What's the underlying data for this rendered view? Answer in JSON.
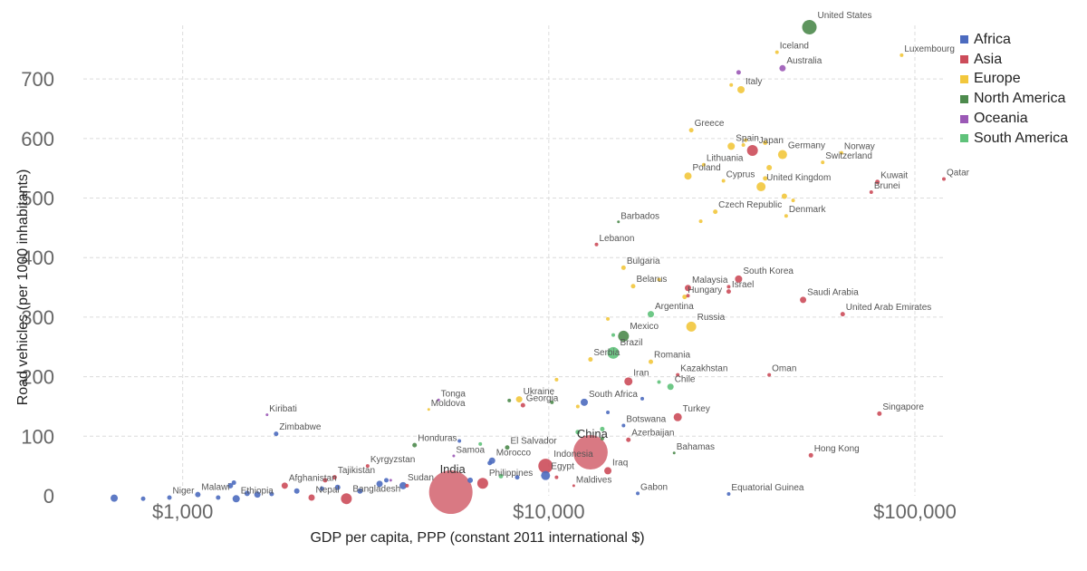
{
  "chart_data": {
    "type": "scatter",
    "title": "",
    "xlabel": "GDP per capita, PPP (constant 2011 international $)",
    "ylabel": "Road vehicles (per 1000 inhabitants)",
    "x_scale": "log",
    "xlim": [
      500,
      120000
    ],
    "ylim": [
      0,
      790
    ],
    "x_ticks": [
      {
        "value": 1000,
        "label": "$1,000"
      },
      {
        "value": 10000,
        "label": "$10,000"
      },
      {
        "value": 100000,
        "label": "$100,000"
      }
    ],
    "y_ticks": [
      {
        "value": 0,
        "label": "0"
      },
      {
        "value": 100,
        "label": "100"
      },
      {
        "value": 200,
        "label": "200"
      },
      {
        "value": 300,
        "label": "300"
      },
      {
        "value": 400,
        "label": "400"
      },
      {
        "value": 500,
        "label": "500"
      },
      {
        "value": 600,
        "label": "600"
      },
      {
        "value": 700,
        "label": "700"
      }
    ],
    "grid": true,
    "legend_position": "right",
    "series": [
      {
        "name": "Africa",
        "color": "#4c6bbf"
      },
      {
        "name": "Asia",
        "color": "#cc4c5a"
      },
      {
        "name": "Europe",
        "color": "#f2c73c"
      },
      {
        "name": "North America",
        "color": "#4d8a4d"
      },
      {
        "name": "Oceania",
        "color": "#9b59b6"
      },
      {
        "name": "South America",
        "color": "#5fc27a"
      }
    ],
    "points": [
      {
        "label": "United States",
        "x": 51500,
        "y": 787,
        "region": "North America",
        "size": 8
      },
      {
        "label": "Iceland",
        "x": 42000,
        "y": 745,
        "region": "Europe",
        "size": 2
      },
      {
        "label": "Luxembourg",
        "x": 92000,
        "y": 740,
        "region": "Europe",
        "size": 2
      },
      {
        "label": "Australia",
        "x": 43500,
        "y": 718,
        "region": "Oceania",
        "size": 3.5
      },
      {
        "label": "Italy",
        "x": 33500,
        "y": 682,
        "region": "Europe",
        "size": 4
      },
      {
        "label": "Greece",
        "x": 24500,
        "y": 614,
        "region": "Europe",
        "size": 2.5
      },
      {
        "label": "Spain",
        "x": 31500,
        "y": 587,
        "region": "Europe",
        "size": 4
      },
      {
        "label": "Japan",
        "x": 36000,
        "y": 580,
        "region": "Asia",
        "size": 6
      },
      {
        "label": "Germany",
        "x": 43500,
        "y": 573,
        "region": "Europe",
        "size": 5
      },
      {
        "label": "Norway",
        "x": 63000,
        "y": 576,
        "region": "Europe",
        "size": 2
      },
      {
        "label": "Switzerland",
        "x": 56000,
        "y": 560,
        "region": "Europe",
        "size": 2
      },
      {
        "label": "Lithuania",
        "x": 26500,
        "y": 556,
        "region": "Europe",
        "size": 2
      },
      {
        "label": "Poland",
        "x": 24000,
        "y": 537,
        "region": "Europe",
        "size": 4
      },
      {
        "label": "Cyprus",
        "x": 30000,
        "y": 529,
        "region": "Europe",
        "size": 2
      },
      {
        "label": "United Kingdom",
        "x": 38000,
        "y": 519,
        "region": "Europe",
        "size": 5
      },
      {
        "label": "Kuwait",
        "x": 79000,
        "y": 527,
        "region": "Asia",
        "size": 2.5
      },
      {
        "label": "Qatar",
        "x": 120000,
        "y": 532,
        "region": "Asia",
        "size": 2
      },
      {
        "label": "Brunei",
        "x": 76000,
        "y": 510,
        "region": "Asia",
        "size": 2
      },
      {
        "label": "Czech Republic",
        "x": 28500,
        "y": 477,
        "region": "Europe",
        "size": 2.5
      },
      {
        "label": "Denmark",
        "x": 44500,
        "y": 470,
        "region": "Europe",
        "size": 2
      },
      {
        "label": "Barbados",
        "x": 15500,
        "y": 460,
        "region": "North America",
        "size": 1.5
      },
      {
        "label": "Lebanon",
        "x": 13500,
        "y": 422,
        "region": "Asia",
        "size": 2
      },
      {
        "label": "Bulgaria",
        "x": 16000,
        "y": 383,
        "region": "Europe",
        "size": 2.5
      },
      {
        "label": "South Korea",
        "x": 33000,
        "y": 364,
        "region": "Asia",
        "size": 4
      },
      {
        "label": "Belarus",
        "x": 17000,
        "y": 352,
        "region": "Europe",
        "size": 2.5
      },
      {
        "label": "Malaysia",
        "x": 24000,
        "y": 349,
        "region": "Asia",
        "size": 3.5
      },
      {
        "label": "Israel",
        "x": 31000,
        "y": 343,
        "region": "Asia",
        "size": 2.5
      },
      {
        "label": "Hungary",
        "x": 23500,
        "y": 334,
        "region": "Europe",
        "size": 2.5
      },
      {
        "label": "Saudi Arabia",
        "x": 49500,
        "y": 329,
        "region": "Asia",
        "size": 3.5
      },
      {
        "label": "United Arab Emirates",
        "x": 63500,
        "y": 305,
        "region": "Asia",
        "size": 2.5
      },
      {
        "label": "Argentina",
        "x": 19000,
        "y": 305,
        "region": "South America",
        "size": 3.5
      },
      {
        "label": "Russia",
        "x": 24500,
        "y": 284,
        "region": "Europe",
        "size": 5.5
      },
      {
        "label": "Mexico",
        "x": 16000,
        "y": 268,
        "region": "North America",
        "size": 6
      },
      {
        "label": "Brazil",
        "x": 15000,
        "y": 240,
        "region": "South America",
        "size": 6.5
      },
      {
        "label": "Serbia",
        "x": 13000,
        "y": 229,
        "region": "Europe",
        "size": 2.5
      },
      {
        "label": "Romania",
        "x": 19000,
        "y": 225,
        "region": "Europe",
        "size": 2.5
      },
      {
        "label": "Kazakhstan",
        "x": 22500,
        "y": 203,
        "region": "Asia",
        "size": 2
      },
      {
        "label": "Oman",
        "x": 40000,
        "y": 203,
        "region": "Asia",
        "size": 2
      },
      {
        "label": "Iran",
        "x": 16500,
        "y": 192,
        "region": "Asia",
        "size": 4.5
      },
      {
        "label": "Chile",
        "x": 21500,
        "y": 183,
        "region": "South America",
        "size": 3.5
      },
      {
        "label": "Ukraine",
        "x": 8300,
        "y": 162,
        "region": "Europe",
        "size": 3.5
      },
      {
        "label": "South Africa",
        "x": 12500,
        "y": 157,
        "region": "Africa",
        "size": 4
      },
      {
        "label": "Tonga",
        "x": 5000,
        "y": 161,
        "region": "Oceania",
        "size": 1.5
      },
      {
        "label": "Georgia",
        "x": 8500,
        "y": 152,
        "region": "Asia",
        "size": 2.5
      },
      {
        "label": "Moldova",
        "x": 4700,
        "y": 145,
        "region": "Europe",
        "size": 1.5
      },
      {
        "label": "Turkey",
        "x": 22500,
        "y": 132,
        "region": "Asia",
        "size": 4.5
      },
      {
        "label": "Singapore",
        "x": 80000,
        "y": 138,
        "region": "Asia",
        "size": 2.5
      },
      {
        "label": "Kiribati",
        "x": 1700,
        "y": 136,
        "region": "Oceania",
        "size": 1.5
      },
      {
        "label": "Botswana",
        "x": 16000,
        "y": 118,
        "region": "Africa",
        "size": 2
      },
      {
        "label": "Zimbabwe",
        "x": 1800,
        "y": 104,
        "region": "Africa",
        "size": 2.5
      },
      {
        "label": "China",
        "x": 13000,
        "y": 73,
        "region": "Asia",
        "size": 19
      },
      {
        "label": "Azerbaijan",
        "x": 16500,
        "y": 94,
        "region": "Asia",
        "size": 2.5
      },
      {
        "label": "Honduras",
        "x": 4300,
        "y": 85,
        "region": "North America",
        "size": 2.5
      },
      {
        "label": "El Salvador",
        "x": 7700,
        "y": 81,
        "region": "North America",
        "size": 2.5
      },
      {
        "label": "Bahamas",
        "x": 22000,
        "y": 72,
        "region": "North America",
        "size": 1.5
      },
      {
        "label": "Hong Kong",
        "x": 52000,
        "y": 68,
        "region": "Asia",
        "size": 2.5
      },
      {
        "label": "Samoa",
        "x": 5500,
        "y": 67,
        "region": "Oceania",
        "size": 1.5
      },
      {
        "label": "Morocco",
        "x": 7000,
        "y": 59,
        "region": "Africa",
        "size": 3.5
      },
      {
        "label": "Indonesia",
        "x": 9800,
        "y": 50,
        "region": "Asia",
        "size": 8
      },
      {
        "label": "Egypt",
        "x": 9800,
        "y": 34,
        "region": "Africa",
        "size": 5
      },
      {
        "label": "Iraq",
        "x": 14500,
        "y": 42,
        "region": "Asia",
        "size": 4
      },
      {
        "label": "Kyrgyzstan",
        "x": 3200,
        "y": 50,
        "region": "Asia",
        "size": 2
      },
      {
        "label": "Philippines",
        "x": 6600,
        "y": 21,
        "region": "Asia",
        "size": 6
      },
      {
        "label": "Tajikistan",
        "x": 2600,
        "y": 31,
        "region": "Asia",
        "size": 2.5
      },
      {
        "label": "Afghanistan",
        "x": 1900,
        "y": 17,
        "region": "Asia",
        "size": 3.5
      },
      {
        "label": "India",
        "x": 5400,
        "y": 6,
        "region": "Asia",
        "size": 24
      },
      {
        "label": "Sudan",
        "x": 4000,
        "y": 17,
        "region": "Africa",
        "size": 4
      },
      {
        "label": "Maldives",
        "x": 11700,
        "y": 17,
        "region": "Asia",
        "size": 1.5
      },
      {
        "label": "Gabon",
        "x": 17500,
        "y": 4,
        "region": "Africa",
        "size": 2
      },
      {
        "label": "Equatorial Guinea",
        "x": 31000,
        "y": 3,
        "region": "Africa",
        "size": 2
      },
      {
        "label": "Bangladesh",
        "x": 2800,
        "y": -5,
        "region": "Asia",
        "size": 6
      },
      {
        "label": "Nepal",
        "x": 2250,
        "y": -3,
        "region": "Asia",
        "size": 3.5
      },
      {
        "label": "Ethiopia",
        "x": 1400,
        "y": -5,
        "region": "Africa",
        "size": 4
      },
      {
        "label": "Malawi",
        "x": 1100,
        "y": 2,
        "region": "Africa",
        "size": 3
      },
      {
        "label": "Niger",
        "x": 920,
        "y": -3,
        "region": "Africa",
        "size": 2.5
      },
      {
        "label": "",
        "x": 650,
        "y": -4,
        "region": "Africa",
        "size": 4
      },
      {
        "label": "",
        "x": 780,
        "y": -5,
        "region": "Africa",
        "size": 2.5
      },
      {
        "label": "",
        "x": 1250,
        "y": -3,
        "region": "Africa",
        "size": 2.5
      },
      {
        "label": "",
        "x": 1350,
        "y": 17,
        "region": "Africa",
        "size": 3
      },
      {
        "label": "",
        "x": 1380,
        "y": 22,
        "region": "Africa",
        "size": 2.5
      },
      {
        "label": "",
        "x": 1500,
        "y": 4,
        "region": "Africa",
        "size": 3
      },
      {
        "label": "",
        "x": 1600,
        "y": 2,
        "region": "Africa",
        "size": 3.5
      },
      {
        "label": "",
        "x": 1750,
        "y": 3,
        "region": "Africa",
        "size": 2.5
      },
      {
        "label": "",
        "x": 2050,
        "y": 8,
        "region": "Africa",
        "size": 3
      },
      {
        "label": "",
        "x": 2400,
        "y": 12,
        "region": "Africa",
        "size": 2.5
      },
      {
        "label": "",
        "x": 2650,
        "y": 14,
        "region": "Africa",
        "size": 3
      },
      {
        "label": "",
        "x": 3050,
        "y": 8,
        "region": "Africa",
        "size": 3
      },
      {
        "label": "",
        "x": 3450,
        "y": 20,
        "region": "Africa",
        "size": 3.5
      },
      {
        "label": "",
        "x": 3600,
        "y": 26,
        "region": "Africa",
        "size": 2.5
      },
      {
        "label": "",
        "x": 6100,
        "y": 26,
        "region": "Africa",
        "size": 3
      },
      {
        "label": "",
        "x": 6900,
        "y": 55,
        "region": "Africa",
        "size": 2.5
      },
      {
        "label": "",
        "x": 8200,
        "y": 31,
        "region": "Africa",
        "size": 2.5
      },
      {
        "label": "",
        "x": 5700,
        "y": 92,
        "region": "Africa",
        "size": 2
      },
      {
        "label": "",
        "x": 14500,
        "y": 140,
        "region": "Africa",
        "size": 2
      },
      {
        "label": "",
        "x": 18000,
        "y": 163,
        "region": "Africa",
        "size": 2
      },
      {
        "label": "",
        "x": 14000,
        "y": 96,
        "region": "North America",
        "size": 2
      },
      {
        "label": "",
        "x": 7800,
        "y": 160,
        "region": "North America",
        "size": 2
      },
      {
        "label": "",
        "x": 10200,
        "y": 157,
        "region": "North America",
        "size": 2
      },
      {
        "label": "",
        "x": 14000,
        "y": 112,
        "region": "South America",
        "size": 2.5
      },
      {
        "label": "",
        "x": 12000,
        "y": 107,
        "region": "South America",
        "size": 2.5
      },
      {
        "label": "",
        "x": 6500,
        "y": 87,
        "region": "South America",
        "size": 2
      },
      {
        "label": "",
        "x": 7400,
        "y": 33,
        "region": "South America",
        "size": 2.5
      },
      {
        "label": "",
        "x": 20000,
        "y": 191,
        "region": "South America",
        "size": 2
      },
      {
        "label": "",
        "x": 15000,
        "y": 270,
        "region": "South America",
        "size": 2
      },
      {
        "label": "",
        "x": 10500,
        "y": 195,
        "region": "Europe",
        "size": 2
      },
      {
        "label": "",
        "x": 26000,
        "y": 461,
        "region": "Europe",
        "size": 2
      },
      {
        "label": "",
        "x": 34000,
        "y": 589,
        "region": "Europe",
        "size": 2
      },
      {
        "label": "",
        "x": 34500,
        "y": 597,
        "region": "Europe",
        "size": 2
      },
      {
        "label": "",
        "x": 39000,
        "y": 593,
        "region": "Europe",
        "size": 2.5
      },
      {
        "label": "",
        "x": 40000,
        "y": 551,
        "region": "Europe",
        "size": 3
      },
      {
        "label": "",
        "x": 44000,
        "y": 503,
        "region": "Europe",
        "size": 3
      },
      {
        "label": "",
        "x": 46500,
        "y": 496,
        "region": "Europe",
        "size": 2
      },
      {
        "label": "",
        "x": 39000,
        "y": 533,
        "region": "Europe",
        "size": 2.5
      },
      {
        "label": "",
        "x": 31500,
        "y": 690,
        "region": "Europe",
        "size": 2
      },
      {
        "label": "",
        "x": 20000,
        "y": 363,
        "region": "Europe",
        "size": 2
      },
      {
        "label": "",
        "x": 12000,
        "y": 150,
        "region": "Europe",
        "size": 2
      },
      {
        "label": "",
        "x": 14500,
        "y": 297,
        "region": "Europe",
        "size": 2
      },
      {
        "label": "",
        "x": 33000,
        "y": 711,
        "region": "Oceania",
        "size": 2.5
      },
      {
        "label": "",
        "x": 3700,
        "y": 26,
        "region": "Oceania",
        "size": 1.5
      },
      {
        "label": "",
        "x": 2450,
        "y": 26,
        "region": "Asia",
        "size": 2.5
      },
      {
        "label": "",
        "x": 4100,
        "y": 17,
        "region": "Asia",
        "size": 2
      },
      {
        "label": "",
        "x": 31000,
        "y": 351,
        "region": "Asia",
        "size": 2
      },
      {
        "label": "",
        "x": 24000,
        "y": 336,
        "region": "Asia",
        "size": 2
      },
      {
        "label": "",
        "x": 10500,
        "y": 31,
        "region": "Asia",
        "size": 2
      }
    ]
  }
}
